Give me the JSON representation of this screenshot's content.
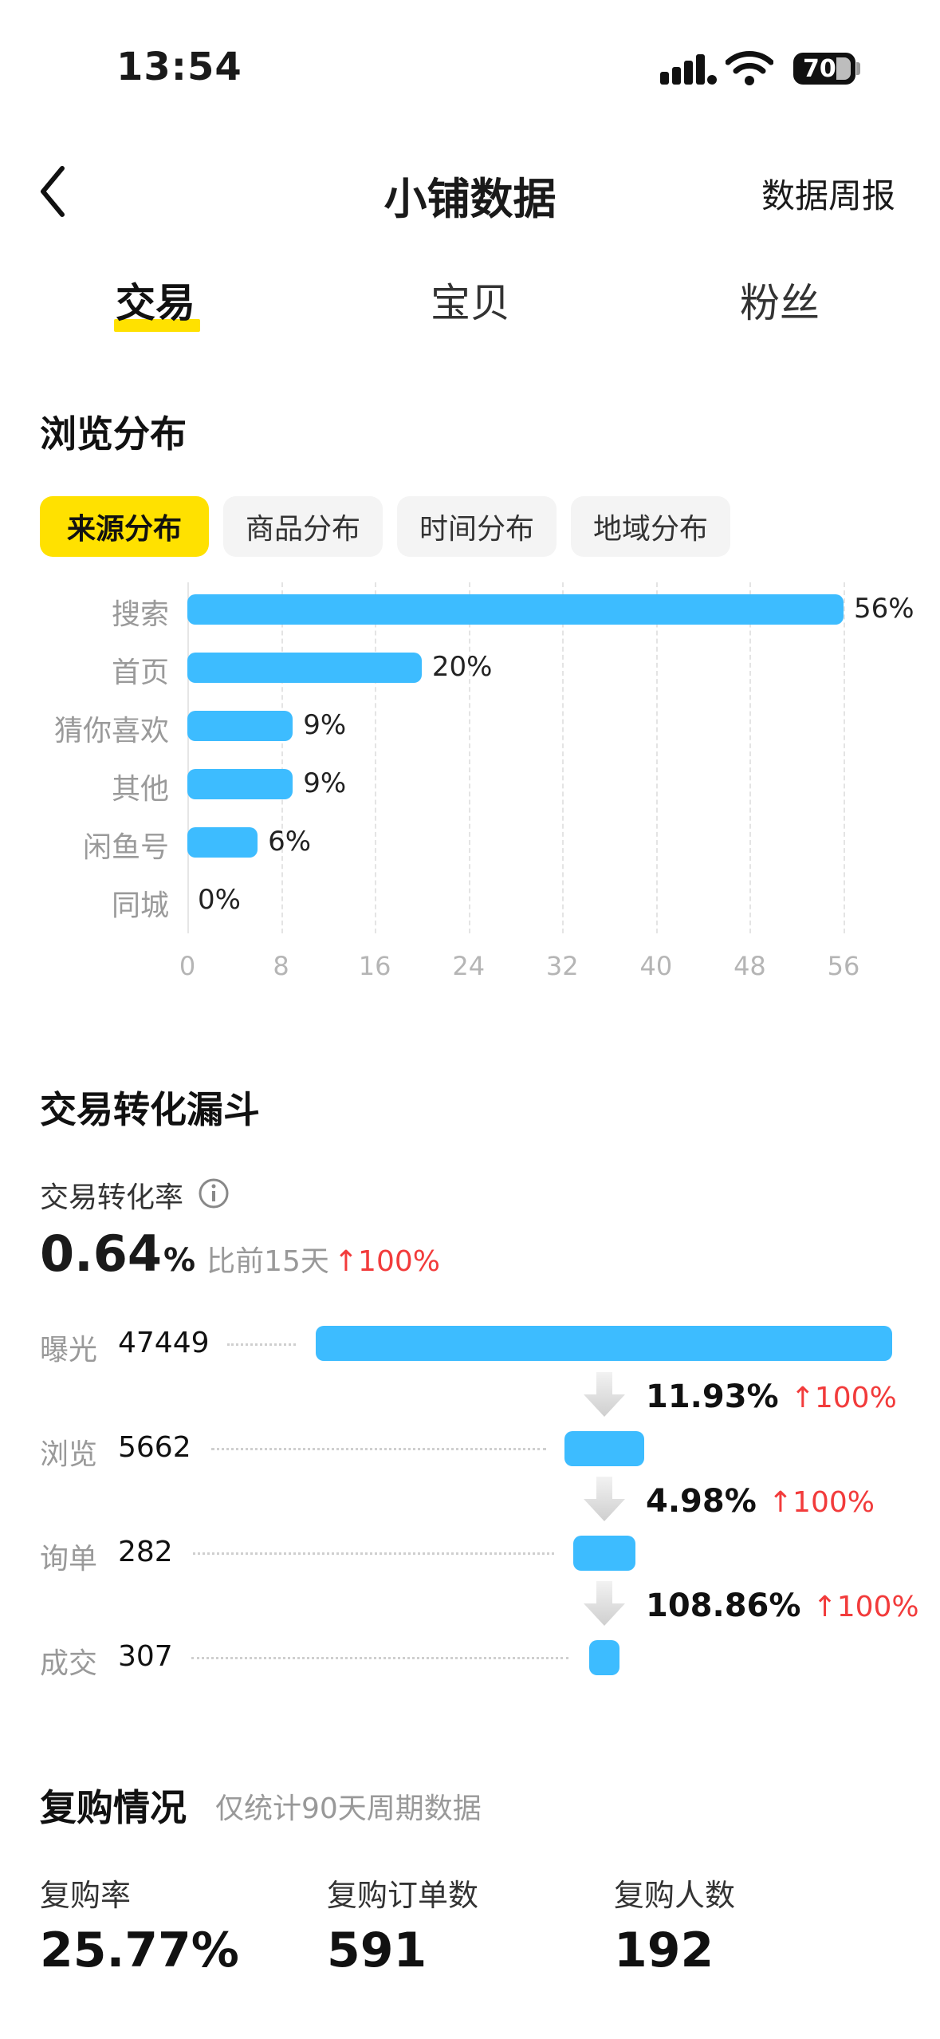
{
  "status_bar": {
    "time": "13:54",
    "battery": "70"
  },
  "nav": {
    "title": "小铺数据",
    "right_link": "数据周报"
  },
  "tabs": [
    {
      "label": "交易",
      "active": true
    },
    {
      "label": "宝贝",
      "active": false
    },
    {
      "label": "粉丝",
      "active": false
    }
  ],
  "browse": {
    "title": "浏览分布",
    "chips": [
      "来源分布",
      "商品分布",
      "时间分布",
      "地域分布"
    ],
    "active_chip": "来源分布"
  },
  "chart_data": {
    "type": "bar",
    "orientation": "horizontal",
    "categories": [
      "搜索",
      "首页",
      "猜你喜欢",
      "其他",
      "闲鱼号",
      "同城"
    ],
    "values": [
      56,
      20,
      9,
      9,
      6,
      0
    ],
    "value_labels": [
      "56%",
      "20%",
      "9%",
      "9%",
      "6%",
      "0%"
    ],
    "x_ticks": [
      "0",
      "8",
      "16",
      "24",
      "32",
      "40",
      "48",
      "56"
    ],
    "xlim": [
      0,
      56
    ],
    "grid": true,
    "color": "#3dbcff"
  },
  "funnel": {
    "title": "交易转化漏斗",
    "conversion_label": "交易转化率",
    "conversion_value": "0.64",
    "conversion_unit": "%",
    "compare_text": "比前15天",
    "compare_change": "100%",
    "stages": [
      {
        "label": "曝光",
        "value": "47449"
      },
      {
        "label": "浏览",
        "value": "5662"
      },
      {
        "label": "询单",
        "value": "282"
      },
      {
        "label": "成交",
        "value": "307"
      }
    ],
    "steps": [
      {
        "rate": "11.93%",
        "change": "100%"
      },
      {
        "rate": "4.98%",
        "change": "100%"
      },
      {
        "rate": "108.86%",
        "change": "100%"
      }
    ]
  },
  "repurchase": {
    "title": "复购情况",
    "note": "仅统计90天周期数据",
    "stats": [
      {
        "label": "复购率",
        "value": "25.77%"
      },
      {
        "label": "复购订单数",
        "value": "591"
      },
      {
        "label": "复购人数",
        "value": "192"
      }
    ]
  },
  "colors": {
    "accent_yellow": "#ffe100",
    "bar_blue": "#3dbcff",
    "up_red": "#f23b3b"
  }
}
